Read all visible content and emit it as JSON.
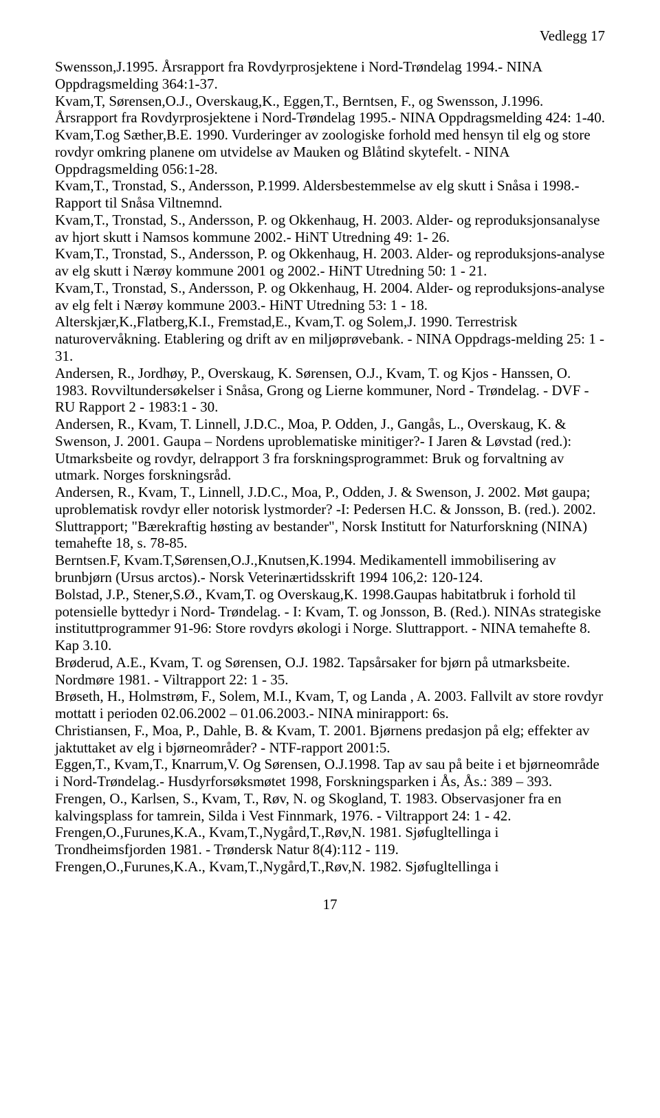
{
  "header": {
    "label": "Vedlegg 17"
  },
  "body": {
    "text": "Swensson,J.1995. Årsrapport fra Rovdyrprosjektene i Nord-Trøndelag 1994.- NINA Oppdragsmelding 364:1-37.\nKvam,T, Sørensen,O.J., Overskaug,K., Eggen,T., Berntsen, F., og Swensson, J.1996. Årsrapport fra Rovdyrprosjektene i Nord-Trøndelag 1995.- NINA Oppdragsmelding 424: 1-40.\nKvam,T.og Sæther,B.E. 1990. Vurderinger av zoologiske forhold med hensyn til elg og store rovdyr omkring planene om utvidelse av Mauken og Blåtind skytefelt. - NINA Oppdragsmelding 056:1-28.\nKvam,T., Tronstad, S., Andersson, P.1999. Aldersbestemmelse av elg skutt i Snåsa i 1998.- Rapport til Snåsa Viltnemnd.\nKvam,T., Tronstad, S., Andersson, P. og Okkenhaug, H. 2003. Alder- og reproduksjonsanalyse av hjort skutt i Namsos kommune 2002.- HiNT Utredning 49: 1- 26.\nKvam,T., Tronstad, S., Andersson, P. og Okkenhaug, H. 2003. Alder- og reproduksjons-analyse av elg skutt i Nærøy kommune 2001 og 2002.- HiNT Utredning 50: 1 - 21.\nKvam,T., Tronstad, S., Andersson, P. og Okkenhaug, H. 2004. Alder- og reproduksjons-analyse av elg felt i Nærøy kommune 2003.- HiNT Utredning 53: 1 - 18.\nAlterskjær,K.,Flatberg,K.I., Fremstad,E., Kvam,T. og Solem,J. 1990. Terrestrisk naturovervåkning. Etablering og drift av en miljøprøvebank. - NINA Oppdrags-melding 25: 1 - 31.\nAndersen, R., Jordhøy, P., Overskaug, K. Sørensen, O.J., Kvam, T. og Kjos - Hanssen, O. 1983. Rovviltundersøkelser i Snåsa, Grong og Lierne kommuner, Nord - Trøndelag. - DVF - RU Rapport 2 - 1983:1 - 30.\nAndersen, R., Kvam, T. Linnell, J.D.C., Moa, P. Odden, J., Gangås, L., Overskaug, K. & Swenson, J. 2001. Gaupa – Nordens uproblematiske minitiger?- I Jaren & Løvstad (red.): Utmarksbeite og rovdyr, delrapport 3 fra forskningsprogrammet: Bruk og forvaltning av utmark. Norges forskningsråd.\nAndersen, R., Kvam, T., Linnell, J.D.C., Moa, P., Odden, J. & Swenson, J. 2002. Møt gaupa; uproblematisk rovdyr eller notorisk lystmorder? -I: Pedersen H.C. & Jonsson, B. (red.). 2002. Sluttrapport; \"Bærekraftig høsting av bestander\", Norsk Institutt for Naturforskning (NINA) temahefte 18, s. 78-85.\nBerntsen.F, Kvam.T,Sørensen,O.J.,Knutsen,K.1994. Medikamentell immobilisering av brunbjørn (Ursus arctos).- Norsk Veterinærtidsskrift 1994 106,2: 120-124.\nBolstad, J.P., Stener,S.Ø., Kvam,T. og Overskaug,K. 1998.Gaupas habitatbruk i forhold til potensielle byttedyr i Nord- Trøndelag. - I: Kvam, T. og Jonsson, B. (Red.). NINAs strategiske instituttprogrammer 91-96: Store rovdyrs økologi i Norge. Sluttrapport. - NINA temahefte 8. Kap 3.10.\nBrøderud, A.E., Kvam, T. og Sørensen, O.J. 1982. Tapsårsaker for bjørn på utmarksbeite. Nordmøre 1981. - Viltrapport 22: 1 - 35.\nBrøseth, H., Holmstrøm, F., Solem, M.I., Kvam, T, og Landa , A. 2003. Fallvilt av store rovdyr mottatt i perioden 02.06.2002 – 01.06.2003.- NINA minirapport: 6s.\nChristiansen, F., Moa, P., Dahle, B. & Kvam, T. 2001. Bjørnens predasjon på elg; effekter av jaktuttaket av elg i bjørneområder? - NTF-rapport 2001:5.\nEggen,T., Kvam,T., Knarrum,V. Og Sørensen, O.J.1998. Tap av sau på beite i et bjørneområde i Nord-Trøndelag.- Husdyrforsøksmøtet 1998, Forskningsparken i Ås, Ås.: 389 – 393.\nFrengen, O., Karlsen, S., Kvam, T., Røv, N. og Skogland, T. 1983. Observasjoner fra en kalvingsplass for tamrein, Silda i Vest Finnmark, 1976. - Viltrapport 24: 1 - 42.\nFrengen,O.,Furunes,K.A., Kvam,T.,Nygård,T.,Røv,N. 1981. Sjøfugltellinga i Trondheimsfjorden 1981. - Trøndersk Natur 8(4):112 - 119.\nFrengen,O.,Furunes,K.A., Kvam,T.,Nygård,T.,Røv,N. 1982. Sjøfugltellinga i"
  },
  "footer": {
    "page": "17"
  }
}
